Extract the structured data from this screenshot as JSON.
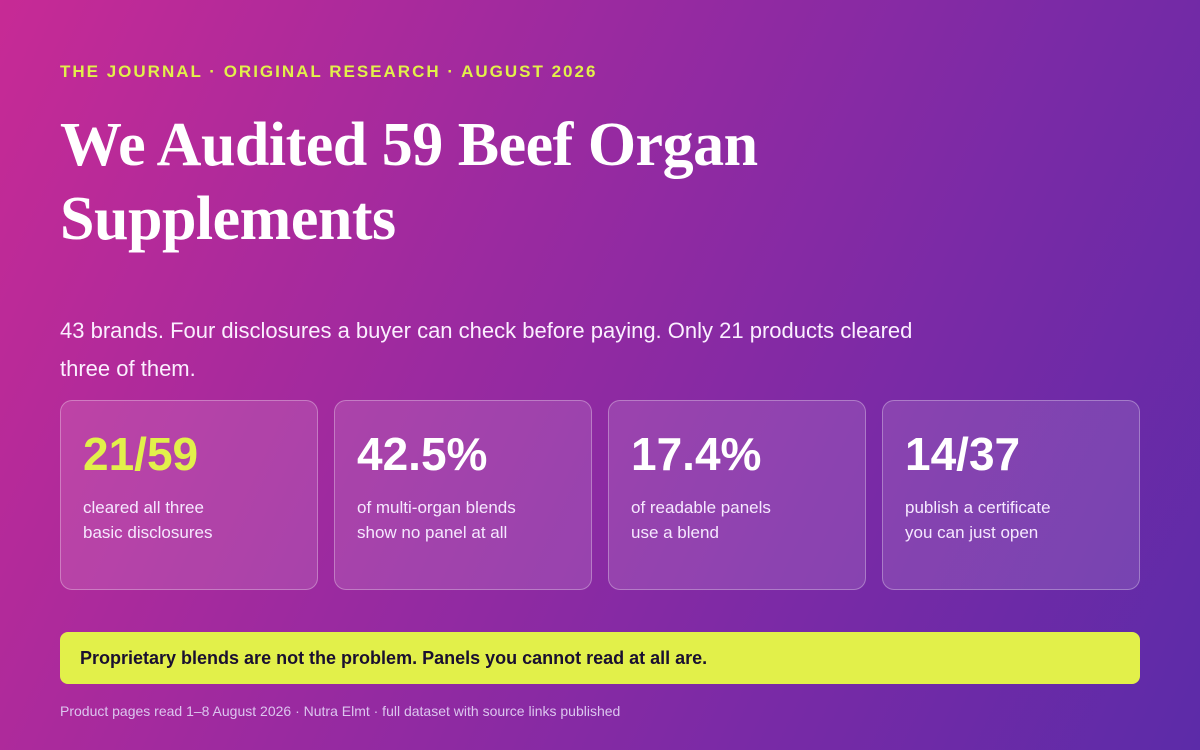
{
  "header": {
    "kicker": "THE JOURNAL · ORIGINAL RESEARCH · AUGUST 2026",
    "title": "We Audited 59 Beef Organ Supplements",
    "description": "43 brands. Four disclosures a buyer can check before paying. Only 21 products cleared three of them."
  },
  "stats": [
    {
      "value": "21/59",
      "label": [
        "cleared all three",
        "basic disclosures"
      ]
    },
    {
      "value": "42.5%",
      "label": [
        "of multi-organ blends",
        "show no panel at all"
      ]
    },
    {
      "value": "17.4%",
      "label": [
        "of readable panels",
        "use a blend"
      ]
    },
    {
      "value": "14/37",
      "label": [
        "publish a certificate",
        "you can just open"
      ]
    }
  ],
  "callout": "Proprietary blends are not the problem. Panels you cannot read at all are.",
  "footer": "Product pages read 1–8 August 2026 · Nutra Elmt · full dataset with source links published"
}
